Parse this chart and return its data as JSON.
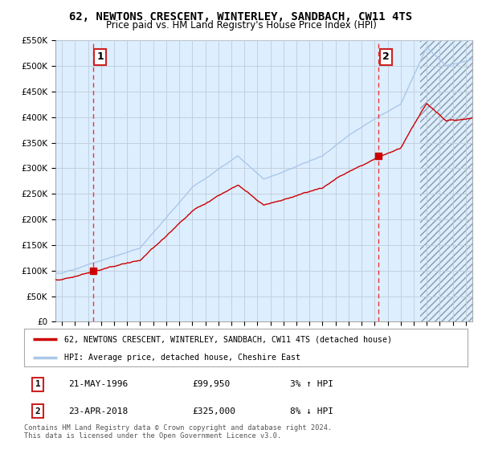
{
  "title": "62, NEWTONS CRESCENT, WINTERLEY, SANDBACH, CW11 4TS",
  "subtitle": "Price paid vs. HM Land Registry's House Price Index (HPI)",
  "ylim": [
    0,
    550000
  ],
  "yticks": [
    0,
    50000,
    100000,
    150000,
    200000,
    250000,
    300000,
    350000,
    400000,
    450000,
    500000,
    550000
  ],
  "ytick_labels": [
    "£0",
    "£50K",
    "£100K",
    "£150K",
    "£200K",
    "£250K",
    "£300K",
    "£350K",
    "£400K",
    "£450K",
    "£500K",
    "£550K"
  ],
  "xlim_start": 1993.5,
  "xlim_end": 2025.5,
  "sale1_x": 1996.38,
  "sale1_y": 99950,
  "sale2_x": 2018.31,
  "sale2_y": 325000,
  "legend_line1": "62, NEWTONS CRESCENT, WINTERLEY, SANDBACH, CW11 4TS (detached house)",
  "legend_line2": "HPI: Average price, detached house, Cheshire East",
  "footer": "Contains HM Land Registry data © Crown copyright and database right 2024.\nThis data is licensed under the Open Government Licence v3.0.",
  "hpi_color": "#aac8e8",
  "price_color": "#cc0000",
  "vline_color": "#ee3333",
  "bg_color": "#ddeeff",
  "table_row1": [
    "1",
    "21-MAY-1996",
    "£99,950",
    "3% ↑ HPI"
  ],
  "table_row2": [
    "2",
    "23-APR-2018",
    "£325,000",
    "8% ↓ HPI"
  ],
  "hatch_start_year": 2021.5
}
